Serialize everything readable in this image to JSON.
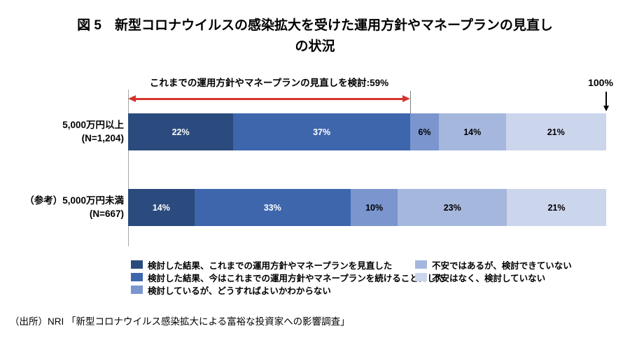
{
  "title": {
    "line1": "図 5　新型コロナウイルスの感染拡大を受けた運用方針やマネープランの見直し",
    "line2": "の状況"
  },
  "chart_data": {
    "type": "bar",
    "orientation": "horizontal-stacked",
    "xlim": [
      0,
      100
    ],
    "grid": false,
    "legend_position": "bottom",
    "axis_max_label": "100%",
    "categories": [
      {
        "label_line1": "5,000万円以上",
        "label_line2": "(N=1,204)"
      },
      {
        "label_line1": "（参考）5,000万円未満",
        "label_line2": "(N=667)"
      }
    ],
    "series": [
      {
        "name": "検討した結果、これまでの運用方針やマネープランを見直した",
        "color": "#2b4b7e",
        "label_color": "#ffffff",
        "values": [
          22,
          14
        ]
      },
      {
        "name": "検討した結果、今はこれまでの運用方針やマネープランを続けることにした",
        "color": "#3e66ad",
        "label_color": "#ffffff",
        "values": [
          37,
          33
        ]
      },
      {
        "name": "検討しているが、どうすればよいかわからない",
        "color": "#7b96ce",
        "label_color": "#000000",
        "values": [
          6,
          10
        ]
      },
      {
        "name": "不安ではあるが、検討できていない",
        "color": "#a5b7dd",
        "label_color": "#000000",
        "values": [
          14,
          23
        ]
      },
      {
        "name": "不安はなく、検討していない",
        "color": "#cbd5ec",
        "label_color": "#000000",
        "values": [
          21,
          21
        ]
      }
    ],
    "value_suffix": "%",
    "annotation": {
      "text": "これまでの運用方針やマネープランの見直しを検討:59%",
      "span_percent": 59,
      "arrow_color": "#d5342e"
    }
  },
  "source": "（出所）NRI 「新型コロナウイルス感染拡大による富裕な投資家への影響調査」"
}
